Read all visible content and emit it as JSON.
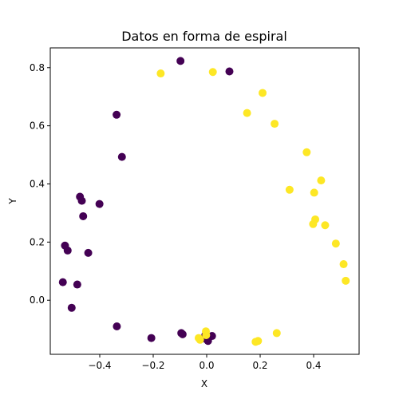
{
  "chart_data": {
    "type": "scatter",
    "title": "Datos en forma de espiral",
    "xlabel": "X",
    "ylabel": "Y",
    "xlim": [
      -0.585,
      0.57
    ],
    "ylim": [
      -0.186,
      0.868
    ],
    "xticks": [
      -0.4,
      -0.2,
      0.0,
      0.2,
      0.4
    ],
    "xtick_labels": [
      "−0.4",
      "−0.2",
      "0.0",
      "0.2",
      "0.4"
    ],
    "yticks": [
      0.0,
      0.2,
      0.4,
      0.6,
      0.8
    ],
    "ytick_labels": [
      "0.0",
      "0.2",
      "0.4",
      "0.6",
      "0.8"
    ],
    "grid": false,
    "colors": {
      "class_0": "#440154",
      "class_1": "#fde725"
    },
    "series": [
      {
        "class": 0,
        "points": [
          [
            -0.098,
            0.823
          ],
          [
            0.085,
            0.787
          ],
          [
            -0.337,
            0.638
          ],
          [
            -0.317,
            0.493
          ],
          [
            -0.474,
            0.356
          ],
          [
            -0.467,
            0.342
          ],
          [
            -0.401,
            0.331
          ],
          [
            -0.462,
            0.289
          ],
          [
            -0.53,
            0.188
          ],
          [
            -0.52,
            0.171
          ],
          [
            -0.443,
            0.163
          ],
          [
            -0.538,
            0.062
          ],
          [
            -0.484,
            0.054
          ],
          [
            -0.505,
            -0.026
          ],
          [
            -0.336,
            -0.09
          ],
          [
            -0.095,
            -0.113
          ],
          [
            -0.09,
            -0.117
          ],
          [
            -0.207,
            -0.13
          ],
          [
            0.02,
            -0.123
          ],
          [
            -0.005,
            -0.12
          ],
          [
            0.0,
            -0.125
          ],
          [
            -0.01,
            -0.13
          ],
          [
            0.0,
            -0.135
          ],
          [
            0.005,
            -0.14
          ]
        ]
      },
      {
        "class": 1,
        "points": [
          [
            -0.172,
            0.78
          ],
          [
            0.023,
            0.785
          ],
          [
            0.209,
            0.713
          ],
          [
            0.151,
            0.644
          ],
          [
            0.254,
            0.607
          ],
          [
            0.374,
            0.509
          ],
          [
            0.428,
            0.412
          ],
          [
            0.31,
            0.38
          ],
          [
            0.402,
            0.37
          ],
          [
            0.406,
            0.278
          ],
          [
            0.398,
            0.262
          ],
          [
            0.443,
            0.258
          ],
          [
            0.483,
            0.195
          ],
          [
            0.512,
            0.124
          ],
          [
            0.52,
            0.067
          ],
          [
            0.262,
            -0.113
          ],
          [
            0.192,
            -0.14
          ],
          [
            0.183,
            -0.143
          ],
          [
            -0.003,
            -0.107
          ],
          [
            -0.002,
            -0.12
          ],
          [
            -0.03,
            -0.13
          ],
          [
            -0.025,
            -0.136
          ]
        ]
      }
    ]
  }
}
